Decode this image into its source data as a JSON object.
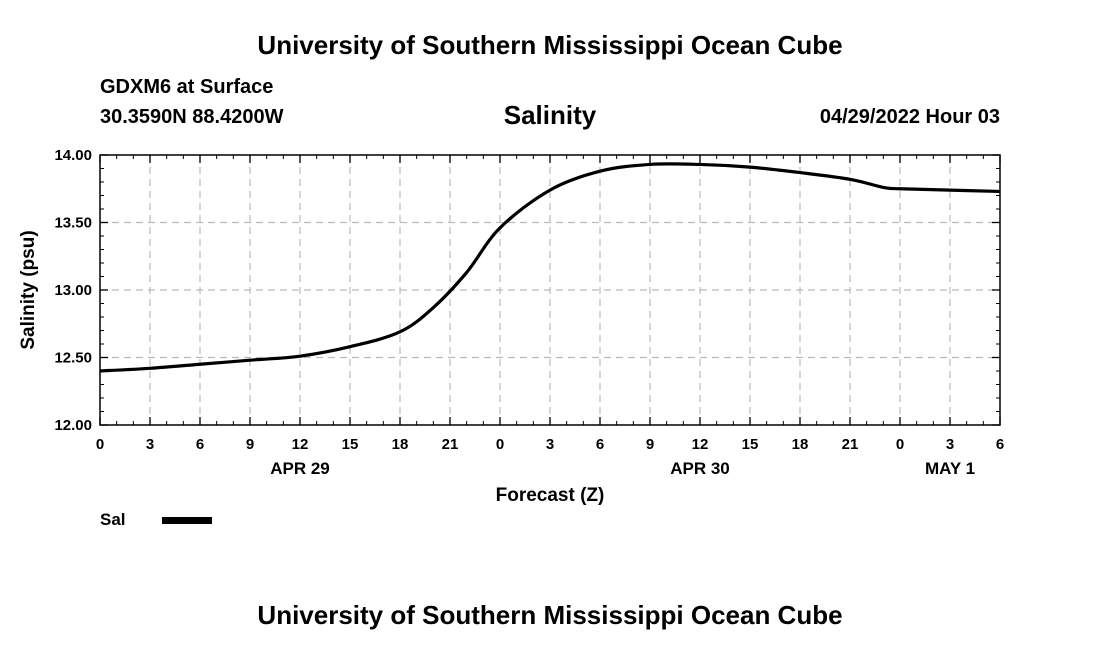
{
  "header": {
    "title_top": "University of Southern Mississippi Ocean Cube",
    "station": "GDXM6 at Surface",
    "coords": "30.3590N  88.4200W",
    "chart_title": "Salinity",
    "datetime": "04/29/2022 Hour 03",
    "title_bottom": "University of Southern Mississippi Ocean Cube"
  },
  "legend": {
    "label": "Sal",
    "color": "#000000"
  },
  "chart_data": {
    "type": "line",
    "title": "Salinity",
    "xlabel": "Forecast (Z)",
    "ylabel": "Salinity (psu)",
    "xlim": [
      0,
      54
    ],
    "ylim": [
      12.0,
      14.0
    ],
    "grid": true,
    "legend_position": "bottom-left",
    "x_ticks": [
      0,
      3,
      6,
      9,
      12,
      15,
      18,
      21,
      24,
      27,
      30,
      33,
      36,
      39,
      42,
      45,
      48,
      51,
      54
    ],
    "x_tick_labels": [
      "0",
      "3",
      "6",
      "9",
      "12",
      "15",
      "18",
      "21",
      "0",
      "3",
      "6",
      "9",
      "12",
      "15",
      "18",
      "21",
      "0",
      "3",
      "6"
    ],
    "date_labels": [
      {
        "x": 12,
        "label": "APR 29"
      },
      {
        "x": 36,
        "label": "APR 30"
      },
      {
        "x": 51,
        "label": "MAY 1"
      }
    ],
    "y_ticks": [
      12.0,
      12.5,
      13.0,
      13.5,
      14.0
    ],
    "y_tick_labels": [
      "12.00",
      "12.50",
      "13.00",
      "13.50",
      "14.00"
    ],
    "series": [
      {
        "name": "Sal",
        "x": [
          0,
          3,
          6,
          9,
          12,
          15,
          18,
          20,
          22,
          24,
          27,
          30,
          33,
          36,
          39,
          42,
          45,
          47,
          48,
          51,
          54
        ],
        "values": [
          12.4,
          12.42,
          12.45,
          12.48,
          12.51,
          12.58,
          12.69,
          12.87,
          13.13,
          13.46,
          13.74,
          13.88,
          13.93,
          13.93,
          13.91,
          13.87,
          13.82,
          13.76,
          13.75,
          13.74,
          13.73
        ]
      }
    ]
  }
}
